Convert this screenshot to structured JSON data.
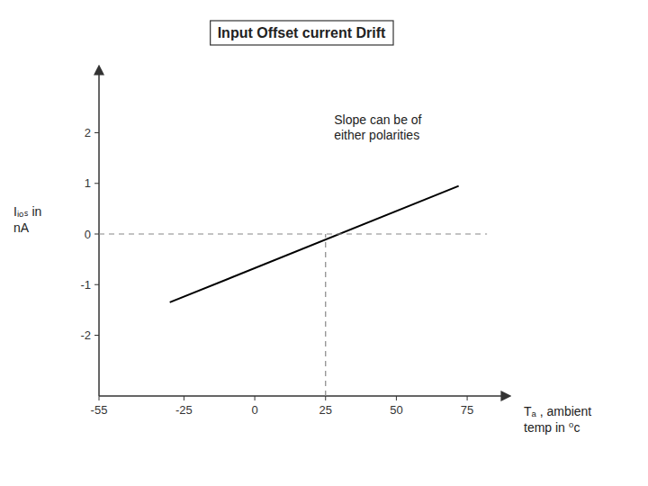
{
  "chart_data": {
    "type": "line",
    "title": "Input Offset current Drift",
    "x_label": "Tₐ , ambient\ntemp in ⁰c",
    "y_label": "Iᵢₒₛ  in\nnA",
    "annotation": {
      "text": "Slope can be of\neither polarities",
      "x": 28,
      "y": 2.4
    },
    "xlim": [
      -55,
      88
    ],
    "ylim": [
      -3.2,
      3.2
    ],
    "xticks": [
      -55,
      -25,
      0,
      25,
      50,
      75
    ],
    "yticks": [
      -2,
      -1,
      0,
      1,
      2
    ],
    "grid": false,
    "series": [
      {
        "color": "#000000",
        "line_style": "solid",
        "x": [
          -30,
          72
        ],
        "values": [
          -1.35,
          0.95
        ]
      },
      {
        "color": "#888888",
        "line_style": "dashed",
        "x": [
          -55,
          82
        ],
        "values": [
          0,
          0
        ]
      },
      {
        "color": "#888888",
        "line_style": "dashed",
        "x": [
          25,
          25
        ],
        "values": [
          -3.2,
          0
        ]
      }
    ]
  }
}
